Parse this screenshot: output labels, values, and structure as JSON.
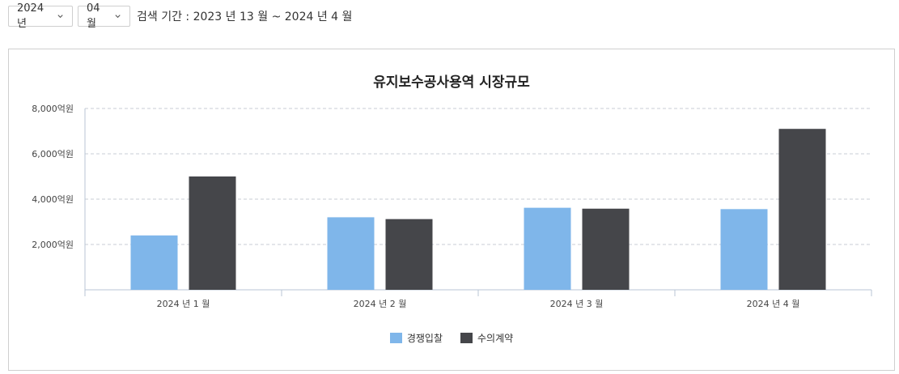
{
  "filters": {
    "year": "2024년",
    "month": "04월",
    "period_text": "검색 기간 : 2023 년 13 월 ~ 2024 년 4 월"
  },
  "icons": {
    "dropdown": "chevron-down-icon"
  },
  "chart_data": {
    "type": "bar",
    "title": "유지보수공사용역 시장규모",
    "categories": [
      "2024 년 1 월",
      "2024 년 2 월",
      "2024 년 3 월",
      "2024 년 4 월"
    ],
    "series": [
      {
        "name": "경쟁입찰",
        "values": [
          2400,
          3200,
          3620,
          3560
        ],
        "color": "#7fb6ea"
      },
      {
        "name": "수의계약",
        "values": [
          5000,
          3120,
          3580,
          7100
        ],
        "color": "#45464a"
      }
    ],
    "ylim": [
      0,
      8000
    ],
    "yticks": [
      2000,
      4000,
      6000,
      8000
    ],
    "ytick_labels": [
      "2,000억원",
      "4,000억원",
      "6,000억원",
      "8,000억원"
    ],
    "grid": true,
    "legend": "bottom-center"
  }
}
